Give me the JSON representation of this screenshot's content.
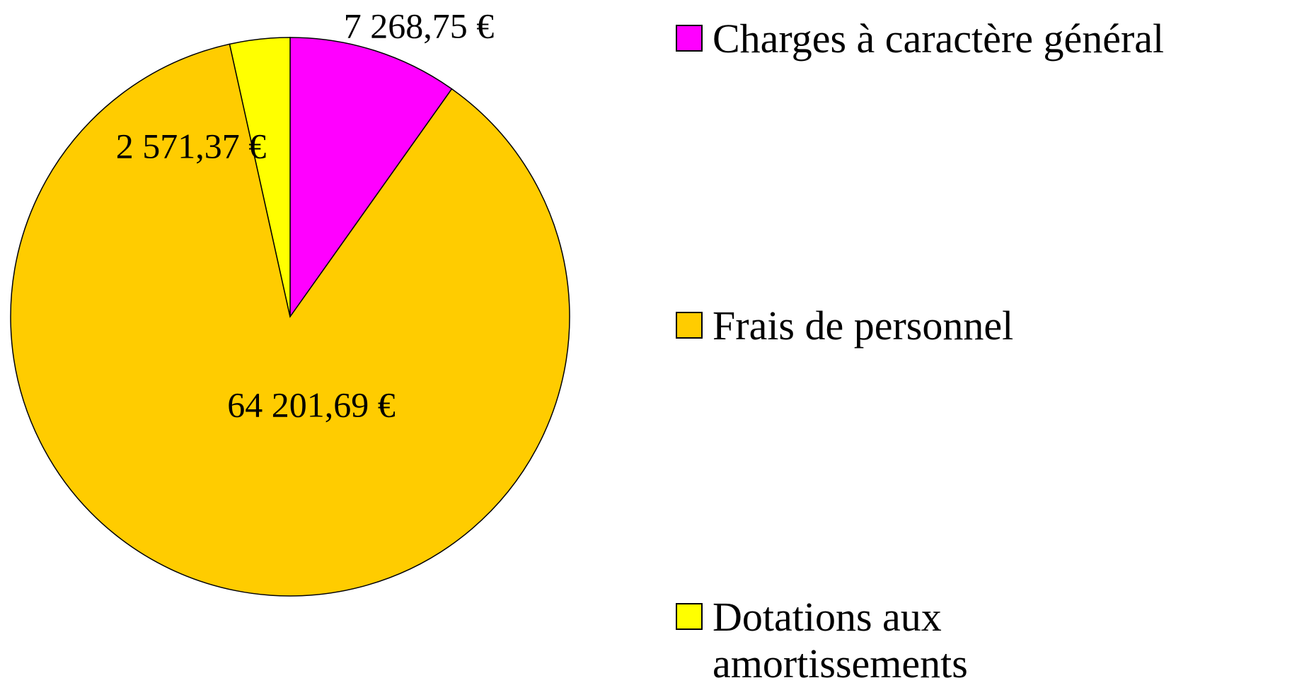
{
  "chart_data": {
    "type": "pie",
    "categories": [
      "Charges à caractère général",
      "Frais de personnel",
      "Dotations aux amortissements"
    ],
    "values": [
      7268.75,
      64201.69,
      2571.37
    ],
    "value_labels": [
      "7 268,75 €",
      "64 201,69 €",
      "2 571,37 €"
    ],
    "colors": [
      "#ff00ff",
      "#ffcc00",
      "#ffff00"
    ]
  }
}
